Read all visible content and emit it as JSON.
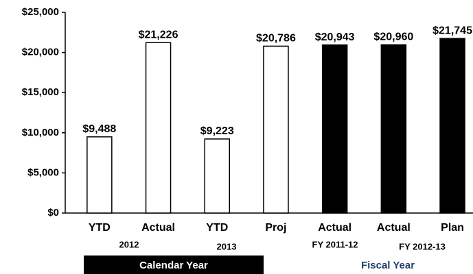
{
  "chart_data": {
    "type": "bar",
    "categories": [
      "YTD",
      "Actual",
      "YTD",
      "Proj",
      "Actual",
      "Actual",
      "Plan"
    ],
    "values": [
      9488,
      21226,
      9223,
      20786,
      20943,
      20960,
      21745
    ],
    "value_labels": [
      "$9,488",
      "$21,226",
      "$9,223",
      "$20,786",
      "$20,943",
      "$20,960",
      "$21,745"
    ],
    "colors": [
      "#ffffff",
      "#ffffff",
      "#ffffff",
      "#ffffff",
      "#000000",
      "#000000",
      "#000000"
    ],
    "ylim": [
      0,
      25000
    ],
    "yticks": [
      {
        "value": 0,
        "label": "$0"
      },
      {
        "value": 5000,
        "label": "$5,000"
      },
      {
        "value": 10000,
        "label": "$10,000"
      },
      {
        "value": 15000,
        "label": "$15,000"
      },
      {
        "value": 20000,
        "label": "$20,000"
      },
      {
        "value": 25000,
        "label": "$25,000"
      }
    ],
    "sub_labels": [
      "2012",
      "2013",
      "FY 2011-12",
      "FY 2012-13"
    ],
    "group_labels": [
      "Calendar Year",
      "Fiscal Year"
    ]
  }
}
